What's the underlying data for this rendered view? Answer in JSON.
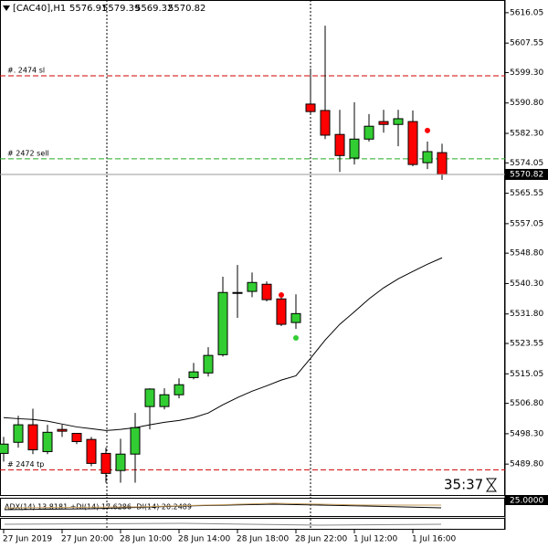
{
  "chart_data": {
    "type": "candlestick",
    "title": "[CAC40],H1",
    "categories": [
      "27 Jun 2019",
      null,
      null,
      null,
      "27 Jun 20:00",
      null,
      null,
      null,
      "28 Jun 10:00",
      null,
      null,
      null,
      "28 Jun 14:00",
      null,
      null,
      null,
      "28 Jun 18:00",
      null,
      null,
      null,
      "28 Jun 22:00",
      null,
      null,
      null,
      "1 Jul 12:00",
      null,
      null,
      null,
      "1 Jul 16:00",
      null,
      null
    ],
    "open": [
      5492.8,
      5495.9,
      5500.8,
      5493.3,
      5499.5,
      5498.4,
      5496.7,
      5492.8,
      5488.0,
      5492.6,
      5505.9,
      5505.9,
      5509.2,
      5514.0,
      5515.3,
      5520.4,
      5537.6,
      5538.1,
      5540.1,
      5536.0,
      5529.4,
      5590.5,
      5588.7,
      5582.0,
      5575.4,
      5580.7,
      5585.6,
      5584.8,
      5585.6,
      5574.1,
      5576.91
    ],
    "high": [
      5497.4,
      5503.3,
      5505.3,
      5500.8,
      5500.8,
      5497.4,
      5497.4,
      5494.4,
      5496.9,
      5504.1,
      5511.0,
      5511.0,
      5513.8,
      5518.1,
      5522.5,
      5542.2,
      5545.5,
      5543.4,
      5540.9,
      5537.3,
      5537.3,
      5600.4,
      5612.4,
      5588.9,
      5591.0,
      5587.7,
      5588.9,
      5588.9,
      5588.7,
      5580.0,
      5579.39
    ],
    "low": [
      5490.5,
      5494.4,
      5492.6,
      5492.6,
      5497.4,
      5495.4,
      5489.2,
      5484.6,
      5484.6,
      5484.6,
      5499.5,
      5505.1,
      5508.2,
      5513.5,
      5514.3,
      5519.9,
      5530.7,
      5536.5,
      5535.3,
      5528.4,
      5527.6,
      5587.7,
      5580.7,
      5571.5,
      5573.6,
      5580.0,
      5582.5,
      5578.7,
      5573.1,
      5572.3,
      5569.32
    ],
    "close": [
      5495.4,
      5500.8,
      5493.8,
      5498.7,
      5499.0,
      5496.1,
      5490.0,
      5487.2,
      5492.6,
      5500.0,
      5510.8,
      5509.2,
      5512.0,
      5515.6,
      5520.2,
      5537.8,
      5537.8,
      5540.6,
      5535.8,
      5528.9,
      5531.9,
      5588.4,
      5581.8,
      5576.1,
      5580.7,
      5584.3,
      5584.8,
      5586.4,
      5573.6,
      5577.2,
      5570.82
    ],
    "up_color": "#32cd32",
    "down_color": "#ff0000",
    "ma_values": [
      5502.8,
      5502.5,
      5502.3,
      5501.8,
      5501.0,
      5500.2,
      5499.7,
      5499.2,
      5499.5,
      5500.0,
      5500.8,
      5501.5,
      5502.0,
      5502.8,
      5504.1,
      5506.4,
      5508.4,
      5510.2,
      5511.7,
      5513.3,
      5514.5,
      5519.4,
      5524.5,
      5528.9,
      5532.4,
      5536.0,
      5539.1,
      5541.6,
      5543.7,
      5545.7,
      5547.5
    ],
    "ma_color": "#000000",
    "fractals_up": [
      null,
      null,
      null,
      null,
      null,
      null,
      null,
      null,
      null,
      null,
      null,
      null,
      null,
      null,
      null,
      null,
      null,
      null,
      null,
      5537.1,
      null,
      null,
      null,
      null,
      null,
      null,
      null,
      null,
      null,
      5583.1,
      null
    ],
    "fractals_down": [
      null,
      null,
      null,
      null,
      null,
      null,
      null,
      null,
      null,
      null,
      null,
      5507.2,
      null,
      null,
      null,
      null,
      null,
      null,
      null,
      null,
      5525.1,
      null,
      null,
      null,
      null,
      null,
      null,
      null,
      null,
      null,
      null
    ],
    "hlines": [
      {
        "value": 5598.4,
        "label": "#.  2474 sl",
        "color": "#d00000"
      },
      {
        "value": 5575.2,
        "label": "#  2472 sell",
        "color": "#22aa22"
      },
      {
        "value": 5488.2,
        "label": "#   2474 tp",
        "color": "#d00000"
      }
    ],
    "ylim": [
      5480.9,
      5619.6
    ],
    "yticks": [
      5616.05,
      5607.55,
      {
        "value": 5599.3,
        "label": "5599.30"
      },
      {
        "value": 5590.8,
        "label": "5590.80"
      },
      {
        "value": 5582.3,
        "label": "5582.30"
      },
      {
        "value": 5574.05,
        "label": "5574.05"
      },
      5565.55,
      5557.05,
      {
        "value": 5548.8,
        "label": "5548.80"
      },
      {
        "value": 5540.3,
        "label": "5540.30"
      },
      {
        "value": 5531.8,
        "label": "5531.80"
      },
      5523.55,
      5515.05,
      {
        "value": 5506.8,
        "label": "5506.80"
      },
      {
        "value": 5498.3,
        "label": "5498.30"
      },
      {
        "value": 5489.8,
        "label": "5489.80"
      }
    ],
    "countdown": "35:37",
    "adx_label": "ADX(14) 13.8181 +DI(14) 17.6286 -DI(14) 20.2489",
    "adx_level": "25.0000"
  }
}
